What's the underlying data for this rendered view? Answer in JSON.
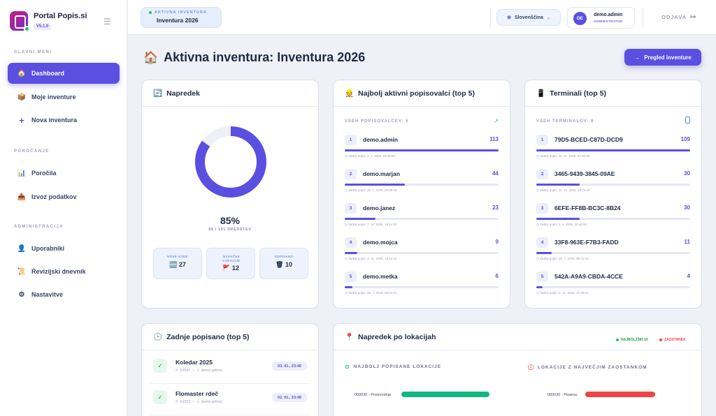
{
  "app": {
    "name": "Portal Popis.si",
    "version": "V5.1.0"
  },
  "sidebar": {
    "sections": [
      {
        "title": "GLAVNI MENI",
        "items": [
          {
            "label": "Dashboard",
            "icon": "home-icon",
            "active": true
          },
          {
            "label": "Moje inventure",
            "icon": "box-icon"
          },
          {
            "label": "Nova inventura",
            "icon": "plus-icon"
          }
        ]
      },
      {
        "title": "POROČANJE",
        "items": [
          {
            "label": "Poročila",
            "icon": "bar-chart-icon"
          },
          {
            "label": "Izvoz podatkov",
            "icon": "export-icon"
          }
        ]
      },
      {
        "title": "ADMINISTRACIJA",
        "items": [
          {
            "label": "Uporabniki",
            "icon": "user-icon"
          },
          {
            "label": "Revizijski dnevnik",
            "icon": "scroll-icon"
          },
          {
            "label": "Nastavitve",
            "icon": "gear-icon"
          }
        ]
      }
    ]
  },
  "topbar": {
    "active_label": "AKTIVNA INVENTURA",
    "active_value": "Inventura 2026",
    "language": "Slovenščina",
    "user": {
      "initials": "DE",
      "name": "demo.admin",
      "role": "ADMINISTRATOR"
    },
    "logout": "ODJAVA"
  },
  "page": {
    "title": "Aktivna inventura: Inventura 2026",
    "button": "Pregled inventure"
  },
  "progress_card": {
    "title": "Napredek",
    "percent": 85,
    "percent_label": "85%",
    "sub": "86 / 101 SREDSTEV",
    "stats": [
      {
        "label": "NOVE KODE",
        "value": "27",
        "icon": "🆕"
      },
      {
        "label": "NAPAČNE LOKACIJE",
        "value": "12",
        "icon": "🚩"
      },
      {
        "label": "ODPISANO",
        "value": "10",
        "icon": "🗑"
      }
    ]
  },
  "counters_card": {
    "title": "Najbolj aktivni popisovalci (top 5)",
    "subtitle": "VSEH POPISOVALCEV: 5",
    "rows": [
      {
        "rank": "1",
        "name": "demo.admin",
        "count": "113",
        "fraction": 1.0,
        "date": "Zadnji popis: 3. 1. 2026, 23:48:58"
      },
      {
        "rank": "2",
        "name": "demo.marjan",
        "count": "44",
        "fraction": 0.39,
        "date": "Zadnji popis: 28. 7. 2025, 08:39:49"
      },
      {
        "rank": "3",
        "name": "demo.janez",
        "count": "23",
        "fraction": 0.2,
        "date": "Zadnji popis: 7. 12. 2025, 18:14:32"
      },
      {
        "rank": "4",
        "name": "demo.mojca",
        "count": "9",
        "fraction": 0.08,
        "date": "Zadnji popis: 3. 10. 2025, 13:51:15"
      },
      {
        "rank": "5",
        "name": "demo.metka",
        "count": "6",
        "fraction": 0.05,
        "date": "Zadnji popis: 28. 7. 2025, 08:37:14"
      }
    ]
  },
  "terminals_card": {
    "title": "Terminali (top 5)",
    "subtitle": "VSEH TERMINALOV: 9",
    "rows": [
      {
        "rank": "1",
        "name": "79D5-BCED-C87D-DCD9",
        "count": "109",
        "fraction": 1.0,
        "date": "Zadnji popis: 11. 11. 2025, 22:50:55"
      },
      {
        "rank": "2",
        "name": "3465-9439-3845-09AE",
        "count": "30",
        "fraction": 0.28,
        "date": "Zadnji popis: 11. 12. 2025, 16:46:44"
      },
      {
        "rank": "3",
        "name": "6EFE-FF8B-BC3C-8B24",
        "count": "30",
        "fraction": 0.28,
        "date": "Zadnji popis: 3. 1. 2026, 23:46:58"
      },
      {
        "rank": "4",
        "name": "33F8-963E-F7B3-FADD",
        "count": "11",
        "fraction": 0.1,
        "date": "Zadnji popis: 28. 7. 2025, 08:41:15"
      },
      {
        "rank": "5",
        "name": "542A-A9A9-CBDA-4CCE",
        "count": "4",
        "fraction": 0.04,
        "date": "Zadnji popis: 2. 12. 2025, 21:39:51"
      }
    ]
  },
  "recent_card": {
    "title": "Zadnje popisano (top 5)",
    "rows": [
      {
        "title": "Koledar 2025",
        "code": "10047",
        "user": "demo.admin",
        "time": "03. 01., 23:46"
      },
      {
        "title": "Flomaster rdeč",
        "code": "10002",
        "user": "demo.admin",
        "time": "02. 01., 23:48"
      }
    ]
  },
  "locations_card": {
    "title": "Napredek po lokacijah",
    "legend_best": "NAJBOLJŠIH 10",
    "legend_lag": "ZAOSTANEK",
    "best_title": "NAJBOLJ POPISANE LOKACIJE",
    "lag_title": "LOKACIJE Z NAJVEČJIM ZAOSTANKOM",
    "best": [
      {
        "label": "000030 - Proizvodnja",
        "fraction": 1.0
      }
    ],
    "lag": [
      {
        "label": "000020 - Pisarna",
        "fraction": 1.0
      }
    ]
  },
  "colors": {
    "accent": "#5a4fe0",
    "success": "#10b981",
    "danger": "#ef4444"
  }
}
